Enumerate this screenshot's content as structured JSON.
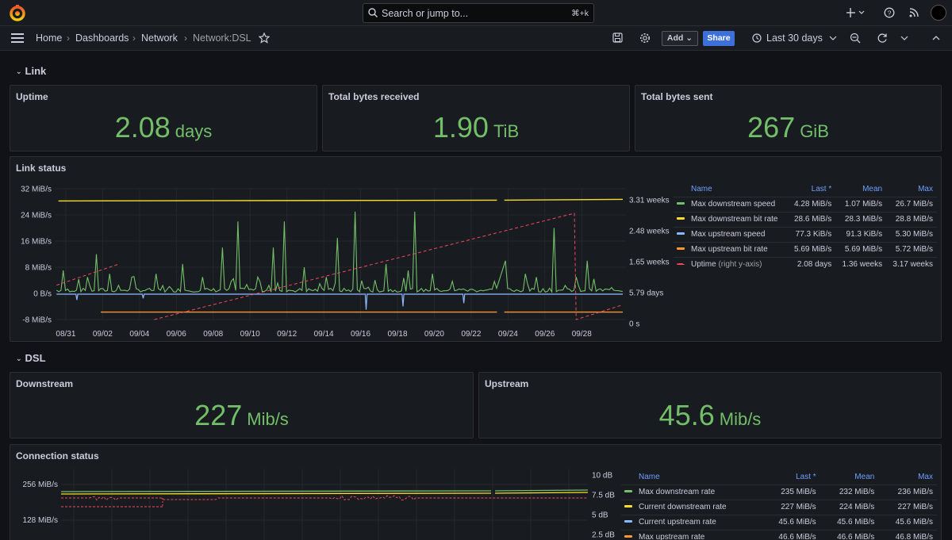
{
  "topbar": {
    "search_placeholder": "Search or jump to...",
    "search_shortcut": "⌘+k"
  },
  "breadcrumb": {
    "items": [
      "Home",
      "Dashboards",
      "Network",
      "Network:DSL"
    ]
  },
  "toolbar": {
    "add_label": "Add",
    "share_label": "Share",
    "time_range": "Last 30 days"
  },
  "rows": {
    "link": "Link",
    "dsl": "DSL"
  },
  "stats": {
    "uptime": {
      "title": "Uptime",
      "value": "2.08",
      "unit": "days"
    },
    "received": {
      "title": "Total bytes received",
      "value": "1.90",
      "unit": "TiB"
    },
    "sent": {
      "title": "Total bytes sent",
      "value": "267",
      "unit": "GiB"
    },
    "downstream": {
      "title": "Downstream",
      "value": "227",
      "unit": "Mib/s"
    },
    "upstream": {
      "title": "Upstream",
      "value": "45.6",
      "unit": "Mib/s"
    }
  },
  "link_status": {
    "title": "Link status",
    "legend_headers": [
      "Name",
      "Last *",
      "Mean",
      "Max"
    ],
    "legend": [
      {
        "name": "Max downstream speed",
        "last": "4.28 MiB/s",
        "mean": "1.07 MiB/s",
        "max": "26.7 MiB/s",
        "color": "#73bf69",
        "dashed": false
      },
      {
        "name": "Max downstream bit rate",
        "last": "28.6 MiB/s",
        "mean": "28.3 MiB/s",
        "max": "28.8 MiB/s",
        "color": "#fade2a",
        "dashed": false
      },
      {
        "name": "Max upstream speed",
        "last": "77.3 KiB/s",
        "mean": "91.3 KiB/s",
        "max": "5.30 MiB/s",
        "color": "#8ab8ff",
        "dashed": false
      },
      {
        "name": "Max upstream bit rate",
        "last": "5.69 MiB/s",
        "mean": "5.69 MiB/s",
        "max": "5.72 MiB/s",
        "color": "#ff9830",
        "dashed": false
      },
      {
        "name": "Uptime",
        "suffix": "(right y-axis)",
        "last": "2.08 days",
        "mean": "1.36 weeks",
        "max": "3.17 weeks",
        "color": "#f2495c",
        "dashed": true
      }
    ]
  },
  "connection_status": {
    "title": "Connection status",
    "legend_headers": [
      "Name",
      "Last *",
      "Mean",
      "Max"
    ],
    "legend": [
      {
        "name": "Max downstream rate",
        "last": "235 MiB/s",
        "mean": "232 MiB/s",
        "max": "236 MiB/s",
        "color": "#73bf69",
        "dashed": false
      },
      {
        "name": "Current downstream rate",
        "last": "227 MiB/s",
        "mean": "224 MiB/s",
        "max": "227 MiB/s",
        "color": "#fade2a",
        "dashed": false
      },
      {
        "name": "Current upstream rate",
        "last": "45.6 MiB/s",
        "mean": "45.6 MiB/s",
        "max": "45.6 MiB/s",
        "color": "#8ab8ff",
        "dashed": false
      },
      {
        "name": "Max upstream rate",
        "last": "46.6 MiB/s",
        "mean": "46.6 MiB/s",
        "max": "46.8 MiB/s",
        "color": "#ff9830",
        "dashed": false
      }
    ]
  },
  "chart_data": [
    {
      "type": "line",
      "title": "Link status",
      "x_tick_labels": [
        "08/31",
        "09/02",
        "09/04",
        "09/06",
        "09/08",
        "09/10",
        "09/12",
        "09/14",
        "09/16",
        "09/18",
        "09/20",
        "09/22",
        "09/24",
        "09/26",
        "09/28"
      ],
      "y_left_ticks": [
        "32 MiB/s",
        "24 MiB/s",
        "16 MiB/s",
        "8 MiB/s",
        "0 B/s",
        "-8 MiB/s"
      ],
      "y_left_values": [
        32,
        24,
        16,
        8,
        0,
        -8
      ],
      "y_right_ticks": [
        "3.31 weeks",
        "2.48 weeks",
        "1.65 weeks",
        "5.79 days",
        "0 s"
      ],
      "ylim": [
        -8,
        32
      ],
      "series": [
        {
          "name": "Max downstream bit rate",
          "color": "#fade2a",
          "values_mib": 28.5
        },
        {
          "name": "Max upstream bit rate",
          "color": "#ff9830",
          "values_mib": -5.7
        },
        {
          "name": "Max downstream speed",
          "color": "#73bf69",
          "spikes_day_mib": [
            [
              0.5,
              7
            ],
            [
              1.8,
              5
            ],
            [
              2.3,
              12
            ],
            [
              3.0,
              6
            ],
            [
              4.2,
              5
            ],
            [
              5.5,
              6
            ],
            [
              7.0,
              9
            ],
            [
              8.0,
              5
            ],
            [
              9.1,
              14
            ],
            [
              9.9,
              22
            ],
            [
              11.0,
              5
            ],
            [
              11.8,
              14
            ],
            [
              12.5,
              22
            ],
            [
              13.5,
              8
            ],
            [
              14.7,
              5
            ],
            [
              15.3,
              17
            ],
            [
              16.3,
              25
            ],
            [
              18.0,
              9
            ],
            [
              19.2,
              7
            ],
            [
              19.5,
              25
            ],
            [
              20.5,
              6
            ],
            [
              24.5,
              10
            ],
            [
              25.6,
              6
            ],
            [
              26.2,
              5
            ],
            [
              27.1,
              20
            ],
            [
              28.3,
              5
            ],
            [
              28.9,
              10
            ]
          ]
        },
        {
          "name": "Max upstream speed",
          "color": "#8ab8ff",
          "dips_day_mib": [
            [
              1.2,
              -2
            ],
            [
              4.8,
              -1.5
            ],
            [
              16.9,
              -5
            ],
            [
              18.9,
              -4
            ],
            [
              22.2,
              -3
            ]
          ]
        },
        {
          "name": "Uptime",
          "color": "#f2495c",
          "axis": "right"
        }
      ]
    },
    {
      "type": "line",
      "title": "Connection status",
      "y_left_ticks": [
        "256 MiB/s",
        "128 MiB/s"
      ],
      "y_right_ticks": [
        "10 dB",
        "7.5 dB",
        "5 dB",
        "2.5 dB"
      ]
    }
  ]
}
